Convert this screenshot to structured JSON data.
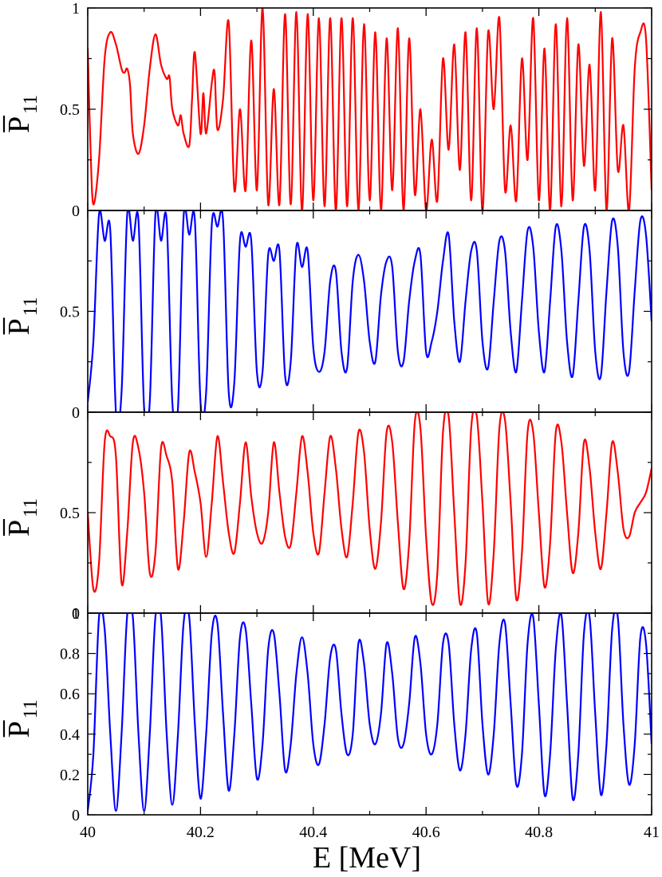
{
  "chart_data": {
    "type": "line",
    "xlabel": "E [MeV]",
    "xlim": [
      40,
      41
    ],
    "x_ticks": [
      "40",
      "40.2",
      "40.4",
      "40.6",
      "40.8",
      "41"
    ],
    "grid": false,
    "panels": [
      {
        "ylabel_main": "P",
        "ylabel_sub": "11",
        "ylim": [
          0,
          1
        ],
        "y_ticks": [
          {
            "v": 0,
            "t": "0"
          },
          {
            "v": 0.5,
            "t": "0.5"
          },
          {
            "v": 1,
            "t": "1"
          }
        ],
        "color": "#ff0000",
        "series": [
          {
            "x": [
              40.0,
              40.005,
              40.01,
              40.02,
              40.03,
              40.04,
              40.05,
              40.06,
              40.065,
              40.07,
              40.075,
              40.08,
              40.09,
              40.1,
              40.11,
              40.12,
              40.13,
              40.14,
              40.145,
              40.15,
              40.16,
              40.165,
              40.17,
              40.18,
              40.185,
              40.19,
              40.2,
              40.205,
              40.21,
              40.22,
              40.225,
              40.23,
              40.24,
              40.25,
              40.26,
              40.27,
              40.28,
              40.29,
              40.3,
              40.31,
              40.32,
              40.33,
              40.34,
              40.35,
              40.36,
              40.37,
              40.38,
              40.39,
              40.4,
              40.41,
              40.42,
              40.43,
              40.44,
              40.45,
              40.46,
              40.47,
              40.48,
              40.49,
              40.5,
              40.51,
              40.52,
              40.53,
              40.54,
              40.55,
              40.56,
              40.57,
              40.58,
              40.59,
              40.6,
              40.61,
              40.62,
              40.63,
              40.64,
              40.65,
              40.66,
              40.67,
              40.68,
              40.69,
              40.7,
              40.71,
              40.72,
              40.73,
              40.74,
              40.75,
              40.76,
              40.77,
              40.78,
              40.79,
              40.8,
              40.81,
              40.82,
              40.83,
              40.84,
              40.85,
              40.86,
              40.87,
              40.88,
              40.89,
              40.9,
              40.91,
              40.92,
              40.93,
              40.94,
              40.95,
              40.96,
              40.97,
              40.98,
              40.99,
              41.0
            ],
            "y": [
              0.8,
              0.3,
              0.03,
              0.25,
              0.75,
              0.88,
              0.82,
              0.7,
              0.68,
              0.7,
              0.62,
              0.38,
              0.28,
              0.42,
              0.7,
              0.87,
              0.72,
              0.65,
              0.66,
              0.5,
              0.42,
              0.47,
              0.38,
              0.32,
              0.55,
              0.78,
              0.38,
              0.58,
              0.38,
              0.63,
              0.68,
              0.4,
              0.55,
              0.93,
              0.1,
              0.5,
              0.1,
              0.84,
              0.1,
              1.0,
              0.03,
              0.6,
              0.03,
              0.97,
              0.03,
              0.98,
              0.0,
              0.97,
              0.05,
              0.95,
              0.02,
              0.95,
              0.0,
              0.95,
              0.02,
              0.95,
              0.0,
              0.92,
              0.05,
              0.88,
              0.0,
              0.85,
              0.1,
              0.9,
              0.0,
              0.85,
              0.08,
              0.5,
              0.0,
              0.35,
              0.05,
              0.75,
              0.3,
              0.82,
              0.2,
              0.88,
              0.05,
              0.9,
              0.0,
              0.88,
              0.5,
              0.95,
              0.1,
              0.42,
              0.05,
              0.75,
              0.25,
              0.95,
              0.05,
              0.8,
              0.0,
              0.92,
              0.02,
              0.95,
              0.05,
              0.82,
              0.22,
              0.72,
              0.1,
              0.98,
              0.0,
              0.85,
              0.2,
              0.42,
              0.0,
              0.7,
              0.88,
              0.85,
              0.1
            ]
          }
        ]
      },
      {
        "ylabel_main": "P",
        "ylabel_sub": "11",
        "ylim": [
          0,
          1
        ],
        "y_ticks": [
          {
            "v": 0,
            "t": "0"
          },
          {
            "v": 0.5,
            "t": "0.5"
          }
        ],
        "color": "#0000ff",
        "series": [
          {
            "x": [
              40.0,
              40.01,
              40.02,
              40.03,
              40.04,
              40.05,
              40.06,
              40.07,
              40.08,
              40.09,
              40.1,
              40.11,
              40.12,
              40.13,
              40.14,
              40.15,
              40.16,
              40.17,
              40.18,
              40.19,
              40.2,
              40.21,
              40.22,
              40.23,
              40.24,
              40.25,
              40.26,
              40.27,
              40.28,
              40.29,
              40.3,
              40.31,
              40.32,
              40.33,
              40.34,
              40.35,
              40.36,
              40.37,
              40.38,
              40.39,
              40.4,
              40.41,
              40.42,
              40.43,
              40.44,
              40.45,
              40.46,
              40.47,
              40.48,
              40.49,
              40.5,
              40.51,
              40.52,
              40.53,
              40.54,
              40.55,
              40.56,
              40.57,
              40.58,
              40.59,
              40.6,
              40.61,
              40.62,
              40.63,
              40.64,
              40.65,
              40.66,
              40.67,
              40.68,
              40.69,
              40.7,
              40.71,
              40.72,
              40.73,
              40.74,
              40.75,
              40.76,
              40.77,
              40.78,
              40.79,
              40.8,
              40.81,
              40.82,
              40.83,
              40.84,
              40.85,
              40.86,
              40.87,
              40.88,
              40.89,
              40.9,
              40.91,
              40.92,
              40.93,
              40.94,
              40.95,
              40.96,
              40.97,
              40.98,
              40.99,
              41.0
            ],
            "y": [
              0.05,
              0.35,
              0.98,
              0.85,
              0.9,
              0.0,
              0.1,
              0.98,
              0.85,
              0.95,
              0.02,
              0.05,
              0.98,
              0.85,
              0.95,
              0.05,
              0.02,
              0.97,
              0.88,
              0.95,
              0.05,
              0.1,
              0.93,
              0.92,
              0.95,
              0.1,
              0.15,
              0.85,
              0.82,
              0.85,
              0.2,
              0.2,
              0.78,
              0.75,
              0.8,
              0.18,
              0.25,
              0.82,
              0.72,
              0.8,
              0.32,
              0.2,
              0.3,
              0.65,
              0.7,
              0.3,
              0.22,
              0.65,
              0.78,
              0.65,
              0.35,
              0.25,
              0.58,
              0.75,
              0.72,
              0.3,
              0.25,
              0.55,
              0.75,
              0.78,
              0.3,
              0.35,
              0.5,
              0.75,
              0.88,
              0.45,
              0.25,
              0.55,
              0.8,
              0.8,
              0.35,
              0.22,
              0.55,
              0.85,
              0.8,
              0.4,
              0.2,
              0.55,
              0.9,
              0.82,
              0.4,
              0.2,
              0.55,
              0.92,
              0.8,
              0.35,
              0.18,
              0.55,
              0.92,
              0.8,
              0.3,
              0.18,
              0.6,
              0.95,
              0.82,
              0.3,
              0.2,
              0.6,
              0.95,
              0.88,
              0.45
            ]
          }
        ]
      },
      {
        "ylabel_main": "P",
        "ylabel_sub": "11",
        "ylim": [
          0,
          1
        ],
        "y_ticks": [
          {
            "v": 0,
            "t": "0"
          },
          {
            "v": 0.5,
            "t": "0.5"
          }
        ],
        "color": "#ff0000",
        "series": [
          {
            "x": [
              40.0,
              40.01,
              40.02,
              40.03,
              40.04,
              40.05,
              40.06,
              40.07,
              40.08,
              40.09,
              40.1,
              40.11,
              40.12,
              40.13,
              40.14,
              40.15,
              40.16,
              40.17,
              40.18,
              40.19,
              40.2,
              40.21,
              40.22,
              40.23,
              40.24,
              40.25,
              40.26,
              40.27,
              40.28,
              40.29,
              40.3,
              40.31,
              40.32,
              40.33,
              40.34,
              40.35,
              40.36,
              40.37,
              40.38,
              40.39,
              40.4,
              40.41,
              40.42,
              40.43,
              40.44,
              40.45,
              40.46,
              40.47,
              40.48,
              40.49,
              40.5,
              40.51,
              40.52,
              40.53,
              40.54,
              40.55,
              40.56,
              40.57,
              40.58,
              40.59,
              40.6,
              40.61,
              40.62,
              40.63,
              40.64,
              40.65,
              40.66,
              40.67,
              40.68,
              40.69,
              40.7,
              40.71,
              40.72,
              40.73,
              40.74,
              40.75,
              40.76,
              40.77,
              40.78,
              40.79,
              40.8,
              40.81,
              40.82,
              40.83,
              40.84,
              40.85,
              40.86,
              40.87,
              40.88,
              40.89,
              40.9,
              40.91,
              40.92,
              40.93,
              40.94,
              40.95,
              40.96,
              40.97,
              40.98,
              40.99,
              41.0
            ],
            "y": [
              0.5,
              0.12,
              0.25,
              0.85,
              0.88,
              0.78,
              0.15,
              0.4,
              0.85,
              0.82,
              0.6,
              0.2,
              0.3,
              0.82,
              0.78,
              0.65,
              0.22,
              0.45,
              0.8,
              0.7,
              0.55,
              0.28,
              0.55,
              0.88,
              0.65,
              0.4,
              0.3,
              0.55,
              0.85,
              0.58,
              0.4,
              0.35,
              0.5,
              0.85,
              0.6,
              0.38,
              0.34,
              0.6,
              0.88,
              0.7,
              0.4,
              0.3,
              0.6,
              0.88,
              0.72,
              0.42,
              0.28,
              0.55,
              0.9,
              0.8,
              0.42,
              0.22,
              0.45,
              0.9,
              0.85,
              0.45,
              0.12,
              0.35,
              0.95,
              0.92,
              0.38,
              0.05,
              0.2,
              0.9,
              0.98,
              0.5,
              0.05,
              0.25,
              0.92,
              0.98,
              0.55,
              0.05,
              0.3,
              0.92,
              0.96,
              0.55,
              0.07,
              0.3,
              0.9,
              0.9,
              0.5,
              0.13,
              0.35,
              0.9,
              0.85,
              0.5,
              0.2,
              0.4,
              0.85,
              0.72,
              0.4,
              0.22,
              0.5,
              0.85,
              0.7,
              0.42,
              0.38,
              0.5,
              0.55,
              0.6,
              0.72
            ]
          }
        ]
      },
      {
        "ylabel_main": "P",
        "ylabel_sub": "11",
        "ylim": [
          0,
          1
        ],
        "y_ticks": [
          {
            "v": 0,
            "t": "0"
          },
          {
            "v": 0.2,
            "t": "0.2"
          },
          {
            "v": 0.4,
            "t": "0.4"
          },
          {
            "v": 0.6,
            "t": "0.6"
          },
          {
            "v": 0.8,
            "t": "0.8"
          },
          {
            "v": 1,
            "t": "1"
          }
        ],
        "color": "#0000ff",
        "series": [
          {
            "x": [
              40.0,
              40.01,
              40.02,
              40.03,
              40.04,
              40.05,
              40.06,
              40.07,
              40.08,
              40.09,
              40.1,
              40.11,
              40.12,
              40.13,
              40.14,
              40.15,
              40.16,
              40.17,
              40.18,
              40.19,
              40.2,
              40.21,
              40.22,
              40.23,
              40.24,
              40.25,
              40.26,
              40.27,
              40.28,
              40.29,
              40.3,
              40.31,
              40.32,
              40.33,
              40.34,
              40.35,
              40.36,
              40.37,
              40.38,
              40.39,
              40.4,
              40.41,
              40.42,
              40.43,
              40.44,
              40.45,
              40.46,
              40.47,
              40.48,
              40.49,
              40.5,
              40.51,
              40.52,
              40.53,
              40.54,
              40.55,
              40.56,
              40.57,
              40.58,
              40.59,
              40.6,
              40.61,
              40.62,
              40.63,
              40.64,
              40.65,
              40.66,
              40.67,
              40.68,
              40.69,
              40.7,
              40.71,
              40.72,
              40.73,
              40.74,
              40.75,
              40.76,
              40.77,
              40.78,
              40.79,
              40.8,
              40.81,
              40.82,
              40.83,
              40.84,
              40.85,
              40.86,
              40.87,
              40.88,
              40.89,
              40.9,
              40.91,
              40.92,
              40.93,
              40.94,
              40.95,
              40.96,
              40.97,
              40.98,
              40.99,
              41.0
            ],
            "y": [
              0.02,
              0.3,
              0.98,
              0.92,
              0.4,
              0.02,
              0.4,
              0.99,
              0.98,
              0.4,
              0.02,
              0.4,
              0.98,
              0.98,
              0.4,
              0.05,
              0.4,
              0.95,
              0.98,
              0.45,
              0.08,
              0.4,
              0.9,
              0.95,
              0.5,
              0.12,
              0.4,
              0.88,
              0.92,
              0.55,
              0.18,
              0.35,
              0.82,
              0.9,
              0.6,
              0.22,
              0.35,
              0.7,
              0.88,
              0.7,
              0.35,
              0.25,
              0.45,
              0.78,
              0.82,
              0.5,
              0.3,
              0.4,
              0.85,
              0.75,
              0.45,
              0.35,
              0.5,
              0.85,
              0.7,
              0.38,
              0.35,
              0.55,
              0.88,
              0.75,
              0.4,
              0.3,
              0.45,
              0.85,
              0.85,
              0.45,
              0.22,
              0.4,
              0.82,
              0.9,
              0.45,
              0.2,
              0.4,
              0.85,
              0.95,
              0.55,
              0.15,
              0.3,
              0.85,
              0.98,
              0.55,
              0.1,
              0.3,
              0.82,
              0.99,
              0.55,
              0.08,
              0.3,
              0.9,
              0.98,
              0.5,
              0.1,
              0.35,
              0.92,
              0.98,
              0.45,
              0.15,
              0.35,
              0.88,
              0.85,
              0.35
            ]
          }
        ]
      }
    ]
  }
}
